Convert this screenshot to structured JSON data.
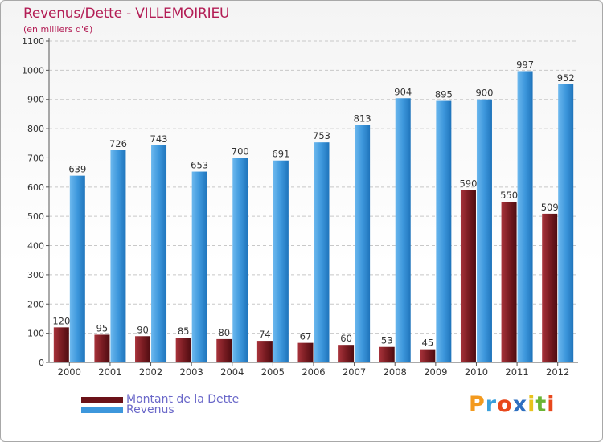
{
  "header": {
    "title": "Revenus/Dette - VILLEMOIRIEU",
    "subtitle": "(en milliers d'€)"
  },
  "legend": {
    "debt_label": "Montant de la Dette",
    "revenue_label": "Revenus"
  },
  "logo": {
    "letters": [
      "P",
      "r",
      "o",
      "x",
      "i",
      "t",
      "i"
    ],
    "letter_colors": [
      "#f39a1e",
      "#3aa0dc",
      "#e8481c",
      "#2e6fc0",
      "#e8c21c",
      "#6bb533",
      "#e8481c"
    ]
  },
  "colors": {
    "debt": "#7a1c22",
    "revenue": "#3d97dc",
    "title": "#b31d55",
    "legend_text": "#6a68c9"
  },
  "chart_data": {
    "type": "bar",
    "title": "Revenus/Dette - VILLEMOIRIEU",
    "ylabel": "(en milliers d'€)",
    "xlabel": "",
    "ylim": [
      0,
      1100
    ],
    "yticks": [
      0,
      100,
      200,
      300,
      400,
      500,
      600,
      700,
      800,
      900,
      1000,
      1100
    ],
    "categories": [
      "2000",
      "2001",
      "2002",
      "2003",
      "2004",
      "2005",
      "2006",
      "2007",
      "2008",
      "2009",
      "2010",
      "2011",
      "2012"
    ],
    "series": [
      {
        "name": "Montant de la Dette",
        "values": [
          120,
          95,
          90,
          85,
          80,
          74,
          67,
          60,
          53,
          45,
          590,
          550,
          509
        ]
      },
      {
        "name": "Revenus",
        "values": [
          639,
          726,
          743,
          653,
          700,
          691,
          753,
          813,
          904,
          895,
          900,
          997,
          952
        ]
      }
    ],
    "grid": true,
    "legend_position": "bottom-left"
  }
}
